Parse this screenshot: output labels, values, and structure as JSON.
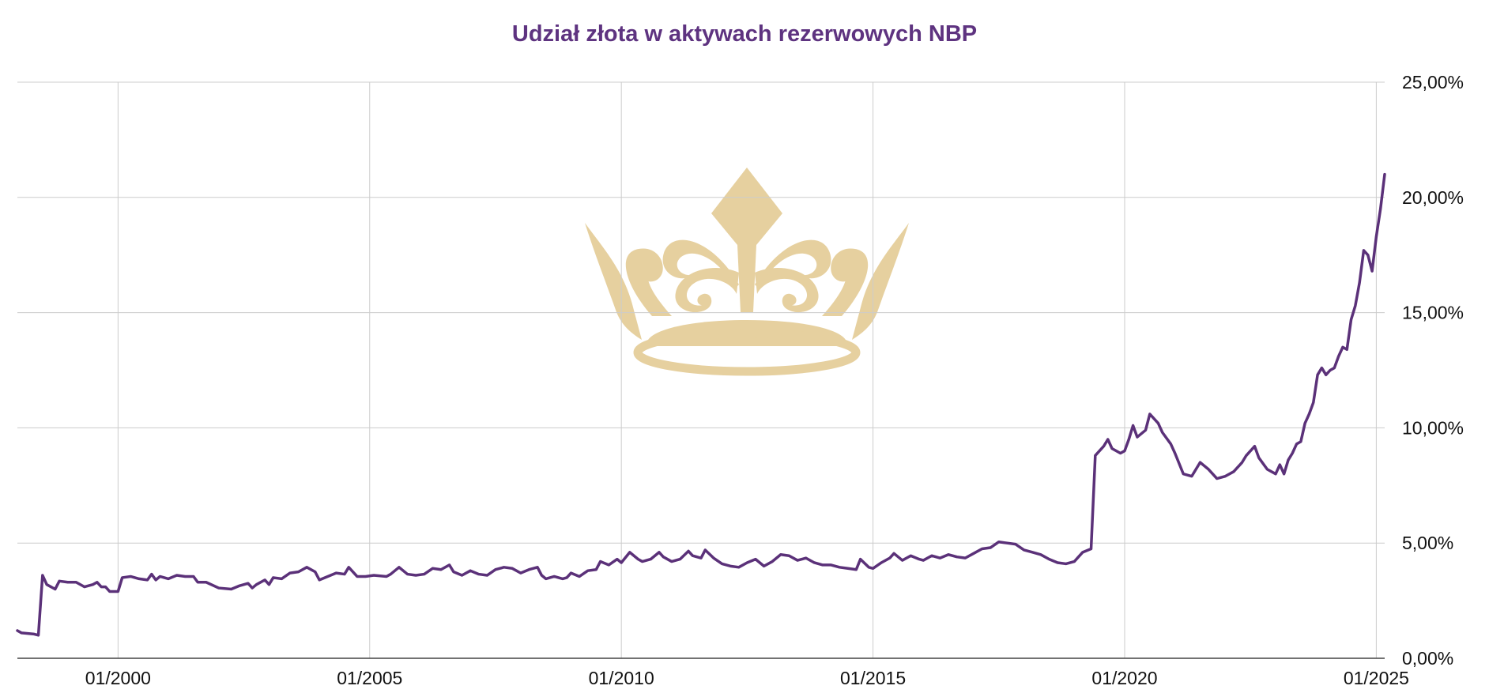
{
  "colors": {
    "title": "#5e3380",
    "line": "#5b3179",
    "grid": "#cccccc",
    "axis": "#444444",
    "watermark": "#e6d09f"
  },
  "watermark": {
    "icon": "crown-icon"
  },
  "chart_data": {
    "type": "line",
    "title": "Udział złota w aktywach rezerwowych NBP",
    "xlabel": "",
    "ylabel": "",
    "grid": true,
    "y_axis_position": "right",
    "ylim": [
      0,
      25
    ],
    "xlim": [
      "1998-01",
      "2025-03"
    ],
    "yticks": [
      {
        "value": 0,
        "label": "0,00%"
      },
      {
        "value": 5,
        "label": "5,00%"
      },
      {
        "value": 10,
        "label": "10,00%"
      },
      {
        "value": 15,
        "label": "15,00%"
      },
      {
        "value": 20,
        "label": "20,00%"
      },
      {
        "value": 25,
        "label": "25,00%"
      }
    ],
    "xticks": [
      {
        "value": "2000-01",
        "label": "01/2000"
      },
      {
        "value": "2005-01",
        "label": "01/2005"
      },
      {
        "value": "2010-01",
        "label": "01/2010"
      },
      {
        "value": "2015-01",
        "label": "01/2015"
      },
      {
        "value": "2020-01",
        "label": "01/2020"
      },
      {
        "value": "2025-01",
        "label": "01/2025"
      }
    ],
    "series": [
      {
        "points": [
          [
            "1998-01",
            1.2
          ],
          [
            "1998-02",
            1.1
          ],
          [
            "1998-05",
            1.05
          ],
          [
            "1998-06",
            1.0
          ],
          [
            "1998-07",
            3.6
          ],
          [
            "1998-08",
            3.2
          ],
          [
            "1998-10",
            3.0
          ],
          [
            "1998-11",
            3.35
          ],
          [
            "1999-01",
            3.3
          ],
          [
            "1999-03",
            3.3
          ],
          [
            "1999-05",
            3.1
          ],
          [
            "1999-07",
            3.2
          ],
          [
            "1999-08",
            3.3
          ],
          [
            "1999-09",
            3.1
          ],
          [
            "1999-10",
            3.1
          ],
          [
            "1999-11",
            2.9
          ],
          [
            "2000-01",
            2.9
          ],
          [
            "2000-02",
            3.5
          ],
          [
            "2000-04",
            3.55
          ],
          [
            "2000-06",
            3.45
          ],
          [
            "2000-08",
            3.4
          ],
          [
            "2000-09",
            3.65
          ],
          [
            "2000-10",
            3.4
          ],
          [
            "2000-11",
            3.55
          ],
          [
            "2001-01",
            3.45
          ],
          [
            "2001-03",
            3.6
          ],
          [
            "2001-05",
            3.55
          ],
          [
            "2001-07",
            3.55
          ],
          [
            "2001-08",
            3.3
          ],
          [
            "2001-10",
            3.3
          ],
          [
            "2002-01",
            3.05
          ],
          [
            "2002-04",
            3.0
          ],
          [
            "2002-06",
            3.15
          ],
          [
            "2002-08",
            3.25
          ],
          [
            "2002-09",
            3.05
          ],
          [
            "2002-10",
            3.2
          ],
          [
            "2002-12",
            3.4
          ],
          [
            "2003-01",
            3.2
          ],
          [
            "2003-02",
            3.5
          ],
          [
            "2003-04",
            3.45
          ],
          [
            "2003-06",
            3.7
          ],
          [
            "2003-08",
            3.75
          ],
          [
            "2003-10",
            3.95
          ],
          [
            "2003-12",
            3.75
          ],
          [
            "2004-01",
            3.4
          ],
          [
            "2004-03",
            3.55
          ],
          [
            "2004-05",
            3.7
          ],
          [
            "2004-07",
            3.65
          ],
          [
            "2004-08",
            3.95
          ],
          [
            "2004-10",
            3.55
          ],
          [
            "2004-12",
            3.55
          ],
          [
            "2005-02",
            3.6
          ],
          [
            "2005-05",
            3.55
          ],
          [
            "2005-06",
            3.65
          ],
          [
            "2005-08",
            3.95
          ],
          [
            "2005-10",
            3.65
          ],
          [
            "2005-12",
            3.6
          ],
          [
            "2006-02",
            3.65
          ],
          [
            "2006-04",
            3.9
          ],
          [
            "2006-06",
            3.85
          ],
          [
            "2006-08",
            4.05
          ],
          [
            "2006-09",
            3.75
          ],
          [
            "2006-11",
            3.6
          ],
          [
            "2007-01",
            3.8
          ],
          [
            "2007-03",
            3.65
          ],
          [
            "2007-05",
            3.6
          ],
          [
            "2007-07",
            3.85
          ],
          [
            "2007-09",
            3.95
          ],
          [
            "2007-11",
            3.9
          ],
          [
            "2008-01",
            3.7
          ],
          [
            "2008-03",
            3.85
          ],
          [
            "2008-05",
            3.95
          ],
          [
            "2008-06",
            3.6
          ],
          [
            "2008-07",
            3.45
          ],
          [
            "2008-09",
            3.55
          ],
          [
            "2008-11",
            3.45
          ],
          [
            "2008-12",
            3.5
          ],
          [
            "2009-01",
            3.7
          ],
          [
            "2009-03",
            3.55
          ],
          [
            "2009-05",
            3.8
          ],
          [
            "2009-07",
            3.85
          ],
          [
            "2009-08",
            4.2
          ],
          [
            "2009-10",
            4.05
          ],
          [
            "2009-12",
            4.3
          ],
          [
            "2010-01",
            4.15
          ],
          [
            "2010-03",
            4.6
          ],
          [
            "2010-05",
            4.3
          ],
          [
            "2010-06",
            4.2
          ],
          [
            "2010-08",
            4.3
          ],
          [
            "2010-10",
            4.6
          ],
          [
            "2010-11",
            4.4
          ],
          [
            "2011-01",
            4.2
          ],
          [
            "2011-03",
            4.3
          ],
          [
            "2011-05",
            4.65
          ],
          [
            "2011-06",
            4.45
          ],
          [
            "2011-08",
            4.35
          ],
          [
            "2011-09",
            4.7
          ],
          [
            "2011-11",
            4.35
          ],
          [
            "2012-01",
            4.1
          ],
          [
            "2012-03",
            4.0
          ],
          [
            "2012-05",
            3.95
          ],
          [
            "2012-07",
            4.15
          ],
          [
            "2012-09",
            4.3
          ],
          [
            "2012-11",
            4.0
          ],
          [
            "2013-01",
            4.2
          ],
          [
            "2013-03",
            4.5
          ],
          [
            "2013-05",
            4.45
          ],
          [
            "2013-07",
            4.25
          ],
          [
            "2013-09",
            4.35
          ],
          [
            "2013-11",
            4.15
          ],
          [
            "2014-01",
            4.05
          ],
          [
            "2014-03",
            4.05
          ],
          [
            "2014-05",
            3.95
          ],
          [
            "2014-07",
            3.9
          ],
          [
            "2014-09",
            3.85
          ],
          [
            "2014-10",
            4.3
          ],
          [
            "2014-12",
            3.95
          ],
          [
            "2015-01",
            3.9
          ],
          [
            "2015-03",
            4.15
          ],
          [
            "2015-05",
            4.35
          ],
          [
            "2015-06",
            4.55
          ],
          [
            "2015-08",
            4.25
          ],
          [
            "2015-10",
            4.45
          ],
          [
            "2015-12",
            4.3
          ],
          [
            "2016-01",
            4.25
          ],
          [
            "2016-03",
            4.45
          ],
          [
            "2016-05",
            4.35
          ],
          [
            "2016-07",
            4.5
          ],
          [
            "2016-09",
            4.4
          ],
          [
            "2016-11",
            4.35
          ],
          [
            "2017-01",
            4.55
          ],
          [
            "2017-03",
            4.75
          ],
          [
            "2017-05",
            4.8
          ],
          [
            "2017-07",
            5.05
          ],
          [
            "2017-09",
            5.0
          ],
          [
            "2017-11",
            4.95
          ],
          [
            "2018-01",
            4.7
          ],
          [
            "2018-03",
            4.6
          ],
          [
            "2018-05",
            4.5
          ],
          [
            "2018-07",
            4.3
          ],
          [
            "2018-09",
            4.15
          ],
          [
            "2018-11",
            4.1
          ],
          [
            "2019-01",
            4.2
          ],
          [
            "2019-03",
            4.6
          ],
          [
            "2019-05",
            4.75
          ],
          [
            "2019-06",
            8.8
          ],
          [
            "2019-07",
            9.0
          ],
          [
            "2019-08",
            9.2
          ],
          [
            "2019-09",
            9.5
          ],
          [
            "2019-10",
            9.1
          ],
          [
            "2019-12",
            8.9
          ],
          [
            "2020-01",
            9.0
          ],
          [
            "2020-02",
            9.5
          ],
          [
            "2020-03",
            10.1
          ],
          [
            "2020-04",
            9.6
          ],
          [
            "2020-06",
            9.9
          ],
          [
            "2020-07",
            10.6
          ],
          [
            "2020-09",
            10.2
          ],
          [
            "2020-10",
            9.8
          ],
          [
            "2020-12",
            9.3
          ],
          [
            "2021-01",
            8.9
          ],
          [
            "2021-03",
            8.0
          ],
          [
            "2021-05",
            7.9
          ],
          [
            "2021-07",
            8.5
          ],
          [
            "2021-09",
            8.2
          ],
          [
            "2021-11",
            7.8
          ],
          [
            "2022-01",
            7.9
          ],
          [
            "2022-03",
            8.1
          ],
          [
            "2022-05",
            8.5
          ],
          [
            "2022-06",
            8.8
          ],
          [
            "2022-08",
            9.2
          ],
          [
            "2022-09",
            8.7
          ],
          [
            "2022-11",
            8.2
          ],
          [
            "2023-01",
            8.0
          ],
          [
            "2023-02",
            8.4
          ],
          [
            "2023-03",
            8.0
          ],
          [
            "2023-04",
            8.6
          ],
          [
            "2023-05",
            8.9
          ],
          [
            "2023-06",
            9.3
          ],
          [
            "2023-07",
            9.4
          ],
          [
            "2023-08",
            10.2
          ],
          [
            "2023-09",
            10.6
          ],
          [
            "2023-10",
            11.1
          ],
          [
            "2023-11",
            12.3
          ],
          [
            "2023-12",
            12.6
          ],
          [
            "2024-01",
            12.3
          ],
          [
            "2024-02",
            12.5
          ],
          [
            "2024-03",
            12.6
          ],
          [
            "2024-04",
            13.1
          ],
          [
            "2024-05",
            13.5
          ],
          [
            "2024-06",
            13.4
          ],
          [
            "2024-07",
            14.7
          ],
          [
            "2024-08",
            15.3
          ],
          [
            "2024-09",
            16.3
          ],
          [
            "2024-10",
            17.7
          ],
          [
            "2024-11",
            17.5
          ],
          [
            "2024-12",
            16.8
          ],
          [
            "2025-01",
            18.3
          ],
          [
            "2025-02",
            19.5
          ],
          [
            "2025-03",
            21.0
          ]
        ]
      }
    ]
  }
}
